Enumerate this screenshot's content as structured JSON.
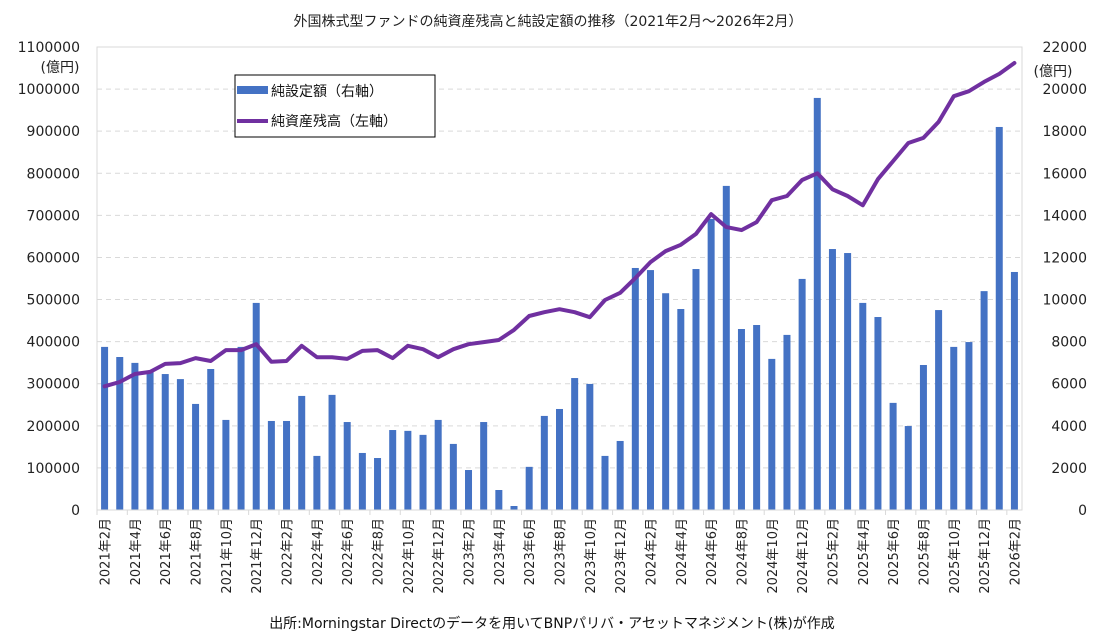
{
  "chart_data": {
    "type": "bar+line",
    "title": "外国株式型ファンドの純資産残高と純設定額の推移（2021年2月～2026年2月）",
    "source": "出所:Morningstar Directのデータを用いてBNPパリバ・アセットマネジメント(株)が作成",
    "left_axis": {
      "unit": "(億円)",
      "range": [
        0,
        1100000
      ],
      "ticks": [
        "0",
        "100000",
        "200000",
        "300000",
        "400000",
        "500000",
        "600000",
        "700000",
        "800000",
        "900000",
        "1000000",
        "1100000"
      ]
    },
    "right_axis": {
      "unit": "(億円)",
      "range": [
        0,
        22000
      ],
      "ticks": [
        "0",
        "2000",
        "4000",
        "6000",
        "8000",
        "10000",
        "12000",
        "14000",
        "16000",
        "18000",
        "20000",
        "22000"
      ]
    },
    "grid": "horizontal dashed",
    "legend": {
      "placement": "top-left",
      "items": [
        {
          "label": "純設定額（右軸）",
          "type": "bar",
          "color": "#4472C4"
        },
        {
          "label": "純資産残高（左軸）",
          "type": "line",
          "color": "#7030A0"
        }
      ]
    },
    "x": [
      "2021年2月",
      "2021年3月",
      "2021年4月",
      "2021年5月",
      "2021年6月",
      "2021年7月",
      "2021年8月",
      "2021年9月",
      "2021年10月",
      "2021年11月",
      "2021年12月",
      "2022年1月",
      "2022年2月",
      "2022年3月",
      "2022年4月",
      "2022年5月",
      "2022年6月",
      "2022年7月",
      "2022年8月",
      "2022年9月",
      "2022年10月",
      "2022年11月",
      "2022年12月",
      "2023年1月",
      "2023年2月",
      "2023年3月",
      "2023年4月",
      "2023年5月",
      "2023年6月",
      "2023年7月",
      "2023年8月",
      "2023年9月",
      "2023年10月",
      "2023年11月",
      "2023年12月",
      "2024年1月",
      "2024年2月",
      "2024年3月",
      "2024年4月",
      "2024年5月",
      "2024年6月",
      "2024年7月",
      "2024年8月",
      "2024年9月",
      "2024年10月",
      "2024年11月",
      "2024年12月",
      "2025年1月",
      "2025年2月",
      "2025年3月",
      "2025年4月",
      "2025年5月",
      "2025年6月",
      "2025年7月",
      "2025年8月",
      "2025年9月",
      "2025年10月",
      "2025年11月",
      "2025年12月",
      "2026年1月",
      "2026年2月"
    ],
    "x_tick_labels_shown_every": 2,
    "series": [
      {
        "name": "純設定額（右軸）",
        "axis": "right",
        "type": "bar",
        "color": "#4472C4",
        "values": [
          7750,
          7270,
          6990,
          6600,
          6460,
          6220,
          5040,
          6700,
          4280,
          7750,
          9840,
          4230,
          4230,
          5420,
          2570,
          5470,
          4180,
          2710,
          2470,
          3800,
          3760,
          3570,
          4280,
          3140,
          1900,
          4180,
          950,
          190,
          2050,
          4470,
          4800,
          6270,
          5990,
          2570,
          3280,
          11500,
          11400,
          10300,
          9550,
          11450,
          13830,
          15400,
          8600,
          8790,
          7180,
          8320,
          10980,
          19580,
          12400,
          12210,
          9840,
          9170,
          5090,
          3990,
          6890,
          9500,
          7750,
          7980,
          10400,
          18200,
          11310
        ]
      },
      {
        "name": "純資産残高（左軸）",
        "axis": "left",
        "type": "line",
        "color": "#7030A0",
        "values": [
          294000,
          304000,
          323000,
          328000,
          347000,
          349000,
          361000,
          354000,
          380000,
          380000,
          394000,
          352000,
          354000,
          390000,
          363000,
          363000,
          359000,
          378000,
          380000,
          361000,
          390000,
          382000,
          363000,
          382000,
          394000,
          399000,
          404000,
          428000,
          461000,
          470000,
          477000,
          470000,
          458000,
          499000,
          516000,
          551000,
          589000,
          615000,
          630000,
          656000,
          703000,
          672000,
          665000,
          684000,
          736000,
          746000,
          784000,
          800000,
          762000,
          746000,
          724000,
          786000,
          829000,
          872000,
          884000,
          922000,
          983000,
          995000,
          1017000,
          1036000,
          1062000
        ]
      }
    ]
  }
}
